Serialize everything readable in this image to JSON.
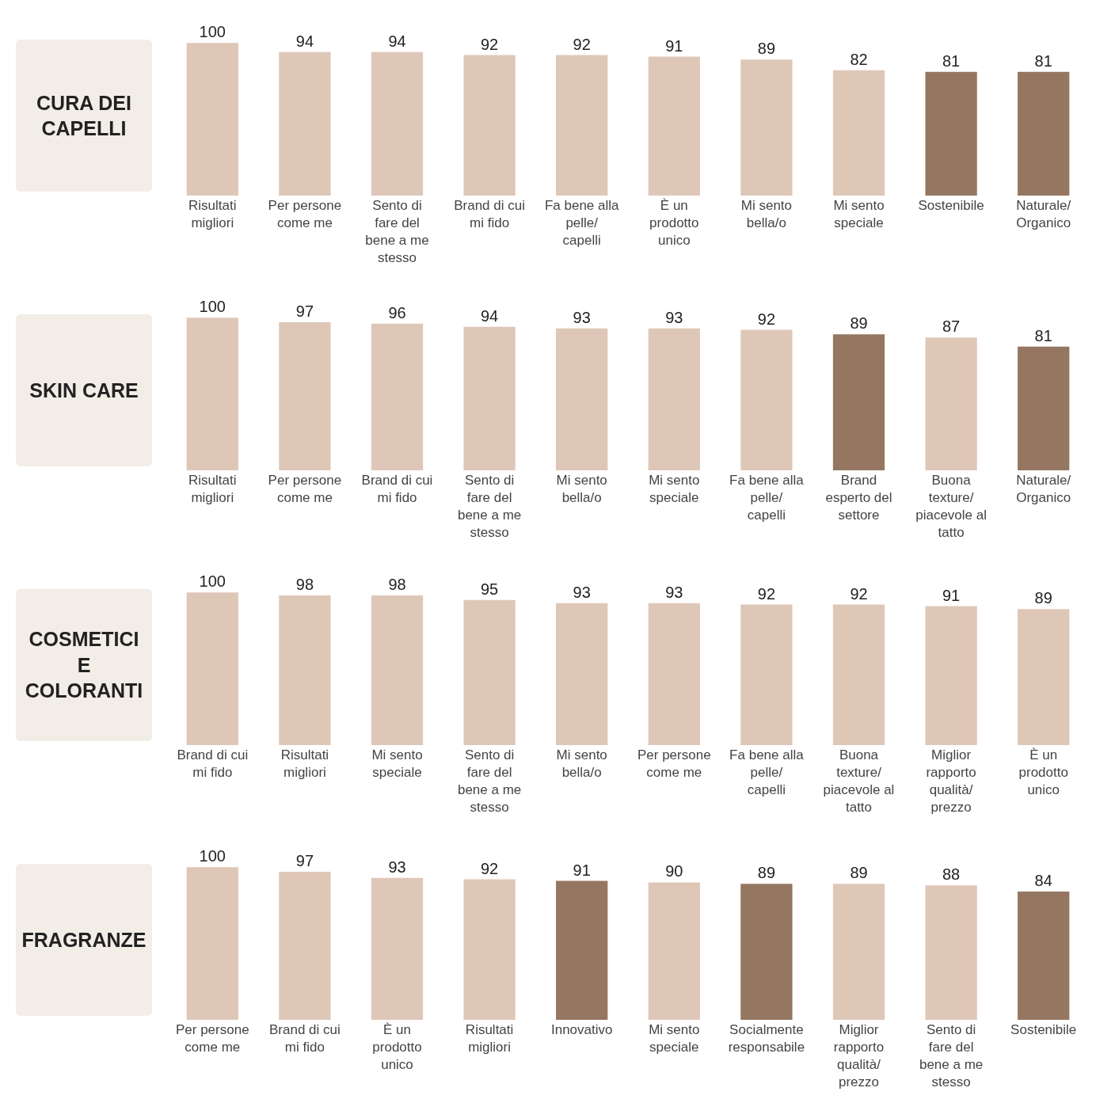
{
  "chart_data": [
    {
      "type": "bar",
      "title": "CURA DEI CAPELLI",
      "categories": [
        "Risultati migliori",
        "Per persone come me",
        "Sento di fare del bene a me stesso",
        "Brand di cui mi fido",
        "Fa bene alla pelle/ capelli",
        "È un prodotto unico",
        "Mi sento bella/o",
        "Mi sento speciale",
        "Sostenibile",
        "Naturale/ Organico"
      ],
      "values": [
        100,
        94,
        94,
        92,
        92,
        91,
        89,
        82,
        81,
        81
      ],
      "colors": [
        "#dfc7b8",
        "#dfc7b8",
        "#dfc7b8",
        "#dfc7b8",
        "#dfc7b8",
        "#dfc7b8",
        "#dfc7b8",
        "#dfc7b8",
        "#957761",
        "#957761"
      ],
      "data_labels": true
    },
    {
      "type": "bar",
      "title": "SKIN CARE",
      "categories": [
        "Risultati migliori",
        "Per persone come me",
        "Brand di cui mi fido",
        "Sento di fare del bene a me stesso",
        "Mi sento bella/o",
        "Mi sento speciale",
        "Fa bene alla pelle/ capelli",
        "Brand esperto del settore",
        "Buona texture/ piacevole al tatto",
        "Naturale/ Organico"
      ],
      "values": [
        100,
        97,
        96,
        94,
        93,
        93,
        92,
        89,
        87,
        81
      ],
      "colors": [
        "#dfc7b8",
        "#dfc7b8",
        "#dfc7b8",
        "#dfc7b8",
        "#dfc7b8",
        "#dfc7b8",
        "#dfc7b8",
        "#957761",
        "#dfc7b8",
        "#957761"
      ],
      "data_labels": true
    },
    {
      "type": "bar",
      "title": "COSMETICI E COLORANTI",
      "categories": [
        "Brand di cui mi fido",
        "Risultati migliori",
        "Mi sento speciale",
        "Sento di fare del bene a me stesso",
        "Mi sento bella/o",
        "Per persone come me",
        "Fa bene alla pelle/ capelli",
        "Buona texture/ piacevole al tatto",
        "Miglior rapporto qualità/ prezzo",
        "È un prodotto unico"
      ],
      "values": [
        100,
        98,
        98,
        95,
        93,
        93,
        92,
        92,
        91,
        89
      ],
      "colors": [
        "#dfc7b8",
        "#dfc7b8",
        "#dfc7b8",
        "#dfc7b8",
        "#dfc7b8",
        "#dfc7b8",
        "#dfc7b8",
        "#dfc7b8",
        "#dfc7b8",
        "#dfc7b8"
      ],
      "data_labels": true
    },
    {
      "type": "bar",
      "title": "FRAGRANZE",
      "categories": [
        "Per persone come me",
        "Brand di cui mi fido",
        "È un prodotto unico",
        "Risultati migliori",
        "Innovativo",
        "Mi sento speciale",
        "Socialmente responsabile",
        "Miglior rapporto qualità/ prezzo",
        "Sento di fare del bene a me stesso",
        "Sostenibile"
      ],
      "values": [
        100,
        97,
        93,
        92,
        91,
        90,
        89,
        89,
        88,
        84
      ],
      "colors": [
        "#dfc7b8",
        "#dfc7b8",
        "#dfc7b8",
        "#dfc7b8",
        "#957761",
        "#dfc7b8",
        "#957761",
        "#dfc7b8",
        "#dfc7b8",
        "#957761"
      ],
      "data_labels": true
    }
  ]
}
